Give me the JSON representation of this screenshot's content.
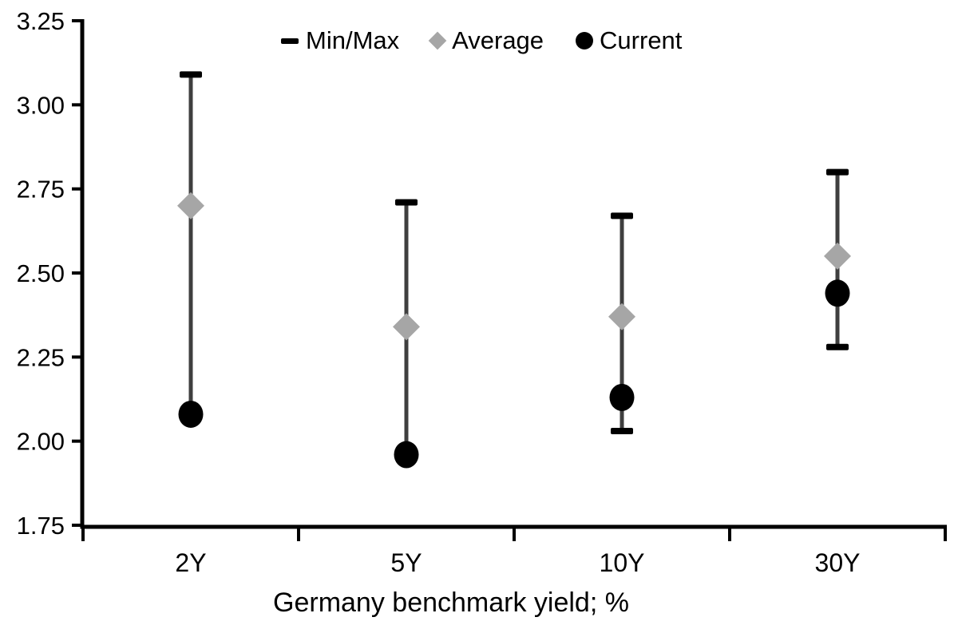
{
  "chart_data": {
    "type": "scatter",
    "subtype": "min-max-range-with-points",
    "title": "",
    "xlabel": "Germany benchmark yield; %",
    "ylabel": "",
    "categories": [
      "2Y",
      "5Y",
      "10Y",
      "30Y"
    ],
    "ylim": [
      1.75,
      3.25
    ],
    "ytick_step": 0.25,
    "ytick_labels": [
      "1.75",
      "2.00",
      "2.25",
      "2.50",
      "2.75",
      "3.00",
      "3.25"
    ],
    "grid": false,
    "legend_position": "top-center",
    "series": [
      {
        "name": "Min/Max",
        "type": "range",
        "max": [
          3.09,
          2.71,
          2.67,
          2.8
        ],
        "min": [
          2.08,
          1.96,
          2.03,
          2.28
        ],
        "min_cap_visible": [
          false,
          false,
          true,
          true
        ],
        "cap_color": "#000000",
        "line_color": "#3f3f3f"
      },
      {
        "name": "Average",
        "type": "point",
        "marker": "diamond",
        "values": [
          2.7,
          2.34,
          2.37,
          2.55
        ],
        "color": "#a6a6a6"
      },
      {
        "name": "Current",
        "type": "point",
        "marker": "circle",
        "values": [
          2.08,
          1.96,
          2.13,
          2.44
        ],
        "color": "#000000"
      }
    ],
    "colors": {
      "axis": "#000000",
      "text": "#000000",
      "background": "#ffffff"
    }
  }
}
